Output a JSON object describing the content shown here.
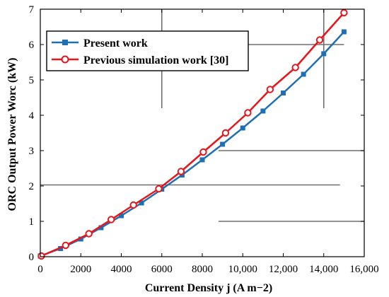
{
  "chart_data": {
    "type": "line",
    "xlabel": "Current Density j (A m−2)",
    "ylabel": "ORC Output Power Worc (kW)",
    "xlim": [
      0,
      16000
    ],
    "ylim": [
      0,
      7
    ],
    "x_ticks": [
      0,
      2000,
      4000,
      6000,
      8000,
      10000,
      12000,
      14000,
      16000
    ],
    "x_tick_labels": [
      "0",
      "2000",
      "4000",
      "6000",
      "8000",
      "10,000",
      "12,000",
      "14,000",
      "16,000"
    ],
    "y_ticks": [
      0,
      1,
      2,
      3,
      4,
      5,
      6,
      7
    ],
    "y_tick_labels": [
      "0",
      "1",
      "2",
      "3",
      "4",
      "5",
      "6",
      "7"
    ],
    "grid": false,
    "legend_position": "top-left",
    "series": [
      {
        "name": "Present work",
        "color": "#1f6fb5",
        "marker": "square",
        "x": [
          0,
          1000,
          2000,
          3000,
          4000,
          5000,
          6000,
          7000,
          8000,
          9000,
          10000,
          11000,
          12000,
          13000,
          14000,
          15000
        ],
        "y": [
          0.02,
          0.23,
          0.5,
          0.82,
          1.16,
          1.52,
          1.91,
          2.31,
          2.74,
          3.18,
          3.64,
          4.12,
          4.63,
          5.16,
          5.74,
          6.36
        ]
      },
      {
        "name": "Previous simulation work [30]",
        "color": "#e8161b",
        "marker": "circle",
        "x": [
          50,
          1250,
          2400,
          3500,
          4600,
          5850,
          6950,
          8050,
          9150,
          10250,
          11350,
          12600,
          13800,
          15000
        ],
        "y": [
          0.02,
          0.32,
          0.65,
          1.05,
          1.46,
          1.92,
          2.41,
          2.96,
          3.5,
          4.07,
          4.73,
          5.35,
          6.13,
          6.9
        ]
      }
    ],
    "overlay_lines_description": "Unlabeled gray horizontal and vertical line segments drawn over the plot area.",
    "overlay_lines": [
      {
        "x1": 6000,
        "y1": 4.2,
        "x2": 6000,
        "y2": 7.3
      },
      {
        "x1": 14000,
        "y1": 4.2,
        "x2": 14000,
        "y2": 7.3
      },
      {
        "x1": 6000,
        "y1": 6.0,
        "x2": 15000,
        "y2": 6.0
      },
      {
        "x1": 8800,
        "y1": 3.0,
        "x2": 16000,
        "y2": 3.0
      },
      {
        "x1": 0,
        "y1": 2.03,
        "x2": 14800,
        "y2": 2.03
      },
      {
        "x1": 8800,
        "y1": 1.0,
        "x2": 16000,
        "y2": 1.0
      }
    ]
  }
}
